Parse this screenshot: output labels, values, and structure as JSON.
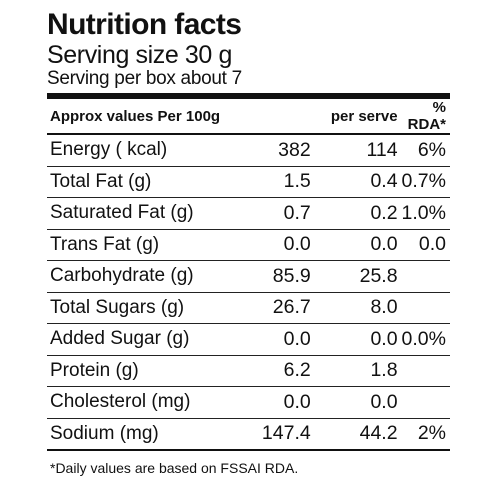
{
  "label": {
    "title": "Nutrition facts",
    "serving_size": "Serving size 30 g",
    "servings_per_box": "Serving per box about 7"
  },
  "table": {
    "headers": [
      "Approx values Per 100g",
      "per serve",
      "% RDA*"
    ],
    "rows": [
      {
        "name": "Energy ( kcal)",
        "per_100g": "382",
        "per_serve": "114",
        "rda": "6%"
      },
      {
        "name": "Total Fat (g)",
        "per_100g": "1.5",
        "per_serve": "0.4",
        "rda": "0.7%"
      },
      {
        "name": "Saturated Fat (g)",
        "per_100g": "0.7",
        "per_serve": "0.2",
        "rda": "1.0%"
      },
      {
        "name": "Trans Fat (g)",
        "per_100g": "0.0",
        "per_serve": "0.0",
        "rda": "0.0"
      },
      {
        "name": "Carbohydrate (g)",
        "per_100g": "85.9",
        "per_serve": "25.8",
        "rda": ""
      },
      {
        "name": "Total Sugars (g)",
        "per_100g": "26.7",
        "per_serve": "8.0",
        "rda": ""
      },
      {
        "name": "Added Sugar (g)",
        "per_100g": "0.0",
        "per_serve": "0.0",
        "rda": "0.0%"
      },
      {
        "name": "Protein (g)",
        "per_100g": "6.2",
        "per_serve": "1.8",
        "rda": ""
      },
      {
        "name": "Cholesterol (mg)",
        "per_100g": "0.0",
        "per_serve": "0.0",
        "rda": ""
      },
      {
        "name": "Sodium (mg)",
        "per_100g": "147.4",
        "per_serve": "44.2",
        "rda": "2%"
      }
    ]
  },
  "footnote": "*Daily values are based on FSSAI RDA.",
  "colors": {
    "text": "#111111",
    "background": "#ffffff",
    "rule": "#111111"
  }
}
